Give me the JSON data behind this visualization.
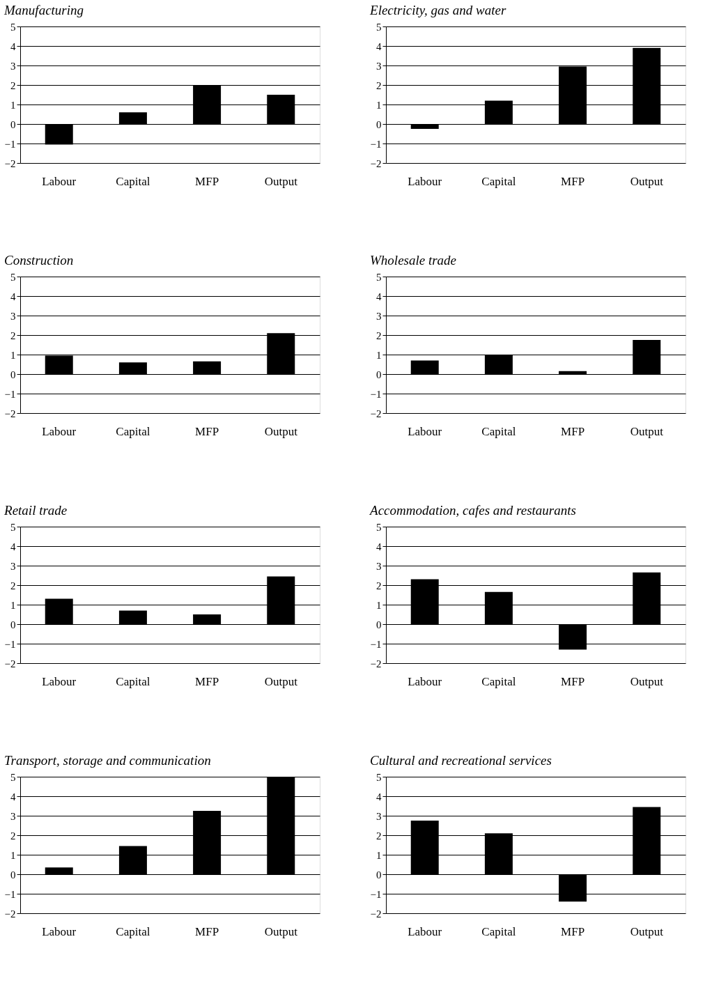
{
  "chart_data": [
    {
      "type": "bar",
      "title": "Manufacturing",
      "categories": [
        "Labour",
        "Capital",
        "MFP",
        "Output"
      ],
      "values": [
        -1.05,
        0.6,
        2.0,
        1.5
      ],
      "color": "#000000",
      "ylim": [
        -2,
        5
      ],
      "yticks": [
        -2,
        -1,
        0,
        1,
        2,
        3,
        4,
        5
      ],
      "grid": "y"
    },
    {
      "type": "bar",
      "title": "Electricity, gas and water",
      "categories": [
        "Labour",
        "Capital",
        "MFP",
        "Output"
      ],
      "values": [
        -0.25,
        1.2,
        2.95,
        3.9
      ],
      "color": "#000000",
      "ylim": [
        -2,
        5
      ],
      "yticks": [
        -2,
        -1,
        0,
        1,
        2,
        3,
        4,
        5
      ],
      "grid": "y"
    },
    {
      "type": "bar",
      "title": "Construction",
      "categories": [
        "Labour",
        "Capital",
        "MFP",
        "Output"
      ],
      "values": [
        0.95,
        0.6,
        0.65,
        2.1
      ],
      "color": "#000000",
      "ylim": [
        -2,
        5
      ],
      "yticks": [
        -2,
        -1,
        0,
        1,
        2,
        3,
        4,
        5
      ],
      "grid": "y"
    },
    {
      "type": "bar",
      "title": "Wholesale trade",
      "categories": [
        "Labour",
        "Capital",
        "MFP",
        "Output"
      ],
      "values": [
        0.7,
        1.0,
        0.15,
        1.75
      ],
      "color": "#000000",
      "ylim": [
        -2,
        5
      ],
      "yticks": [
        -2,
        -1,
        0,
        1,
        2,
        3,
        4,
        5
      ],
      "grid": "y"
    },
    {
      "type": "bar",
      "title": "Retail trade",
      "categories": [
        "Labour",
        "Capital",
        "MFP",
        "Output"
      ],
      "values": [
        1.3,
        0.7,
        0.5,
        2.45
      ],
      "color": "#000000",
      "ylim": [
        -2,
        5
      ],
      "yticks": [
        -2,
        -1,
        0,
        1,
        2,
        3,
        4,
        5
      ],
      "grid": "y"
    },
    {
      "type": "bar",
      "title": "Accommodation, cafes and restaurants",
      "categories": [
        "Labour",
        "Capital",
        "MFP",
        "Output"
      ],
      "values": [
        2.3,
        1.65,
        -1.3,
        2.65
      ],
      "color": "#000000",
      "ylim": [
        -2,
        5
      ],
      "yticks": [
        -2,
        -1,
        0,
        1,
        2,
        3,
        4,
        5
      ],
      "grid": "y"
    },
    {
      "type": "bar",
      "title": "Transport, storage and communication",
      "categories": [
        "Labour",
        "Capital",
        "MFP",
        "Output"
      ],
      "values": [
        0.35,
        1.45,
        3.25,
        5.0
      ],
      "color": "#000000",
      "ylim": [
        -2,
        5
      ],
      "yticks": [
        -2,
        -1,
        0,
        1,
        2,
        3,
        4,
        5
      ],
      "grid": "y"
    },
    {
      "type": "bar",
      "title": "Cultural and recreational services",
      "categories": [
        "Labour",
        "Capital",
        "MFP",
        "Output"
      ],
      "values": [
        2.75,
        2.1,
        -1.4,
        3.45
      ],
      "color": "#000000",
      "ylim": [
        -2,
        5
      ],
      "yticks": [
        -2,
        -1,
        0,
        1,
        2,
        3,
        4,
        5
      ],
      "grid": "y"
    }
  ]
}
